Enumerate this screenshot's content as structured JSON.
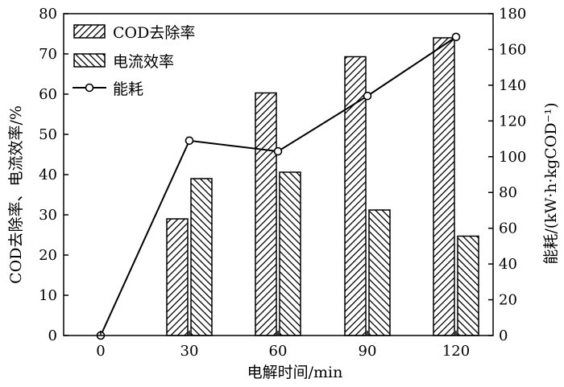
{
  "chart_data": {
    "type": "bar",
    "categories": [
      "0",
      "30",
      "60",
      "90",
      "120"
    ],
    "xlabel": "电解时间/min",
    "ylabel": "COD去除率、电流效率/%",
    "ylabel_right": "能耗/(kW·h·kgCOD⁻¹)",
    "ylim": [
      0,
      80
    ],
    "ylim_right": [
      0,
      180
    ],
    "yticks": [
      "0",
      "10",
      "20",
      "30",
      "40",
      "50",
      "60",
      "70",
      "80"
    ],
    "yticks_right": [
      "0",
      "20",
      "40",
      "60",
      "80",
      "100",
      "120",
      "140",
      "160",
      "180"
    ],
    "series": [
      {
        "name": "COD去除率",
        "kind": "bar",
        "pattern": "hatch-right",
        "values": [
          0,
          29,
          60.3,
          69.3,
          74
        ]
      },
      {
        "name": "电流效率",
        "kind": "bar",
        "pattern": "hatch-left",
        "values": [
          0,
          39,
          40.6,
          31.2,
          24.7
        ]
      },
      {
        "name": "能耗",
        "kind": "line",
        "axis": "right",
        "values": [
          0,
          109,
          103,
          134,
          167
        ]
      }
    ],
    "legend_position": "top-left",
    "grid": false
  },
  "colors": {
    "line": "#000000",
    "marker_fill": "#ffffff",
    "bar_fill": "#ffffff"
  }
}
